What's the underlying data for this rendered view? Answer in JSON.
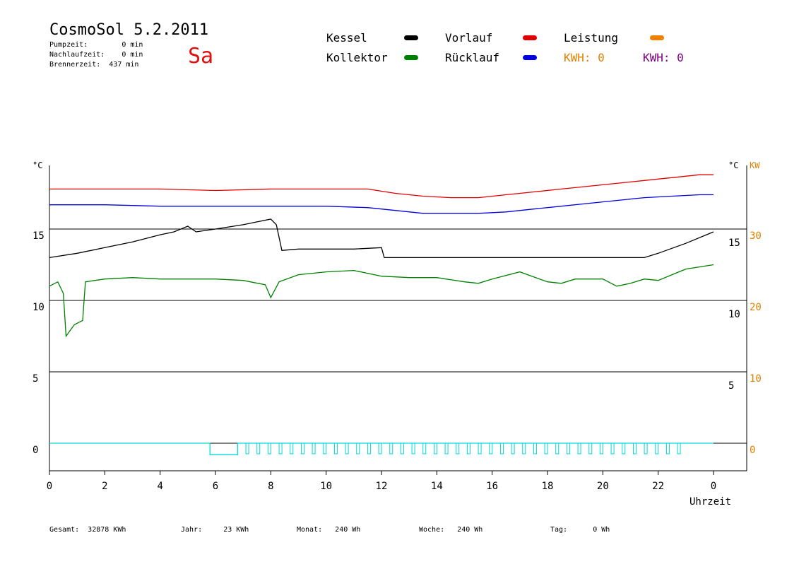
{
  "header": {
    "title": "CosmoSol 5.2.2011",
    "day": "Sa",
    "pumpzeit": "Pumpzeit:        0 min",
    "nachlaufzeit": "Nachlaufzeit:    0 min",
    "brennerzeit": "Brennerzeit:  437 min"
  },
  "legend": {
    "kessel": {
      "label": "Kessel",
      "color": "#000000"
    },
    "kollektor": {
      "label": "Kollektor",
      "color": "#008000"
    },
    "vorlauf": {
      "label": "Vorlauf",
      "color": "#e00000"
    },
    "ruecklauf": {
      "label": "Rücklauf",
      "color": "#0000e0"
    },
    "leistung": {
      "label": "Leistung",
      "color": "#f08000"
    },
    "kwh1": "KWH: 0",
    "kwh2": "KWH: 0",
    "kwh1_color": "#e08000",
    "kwh2_color": "#800080"
  },
  "footer": {
    "gesamt": "Gesamt:  32878 KWh",
    "jahr": "Jahr:     23 KWh",
    "monat": "Monat:   240 Wh",
    "woche": "Woche:   240 Wh",
    "tag": "Tag:      0 Wh"
  },
  "chart_data": {
    "type": "line",
    "xlabel": "Uhrzeit",
    "x_ticks": [
      "0",
      "2",
      "4",
      "6",
      "8",
      "10",
      "12",
      "14",
      "16",
      "18",
      "20",
      "22",
      "0"
    ],
    "x_range": [
      0,
      24
    ],
    "y_left": {
      "unit": "°C",
      "ticks": [
        "15",
        "10",
        "5",
        "0"
      ],
      "range": [
        -2,
        20
      ]
    },
    "y_right_temp": {
      "unit": "°C",
      "ticks": [
        "15",
        "10",
        "5"
      ]
    },
    "y_right_power": {
      "unit": "KW",
      "ticks": [
        "30",
        "20",
        "10",
        "0"
      ],
      "color": "#e08000"
    },
    "grid_values": [
      15,
      10,
      5,
      0
    ],
    "series": [
      {
        "name": "Vorlauf",
        "color": "#e00000",
        "x": [
          0,
          2,
          4,
          6,
          8,
          10,
          11.5,
          12.5,
          13.5,
          14.5,
          15.5,
          16.5,
          17.5,
          18.5,
          19.5,
          20.5,
          21.5,
          22.5,
          23.5,
          24
        ],
        "y": [
          17.8,
          17.8,
          17.8,
          17.7,
          17.8,
          17.8,
          17.8,
          17.5,
          17.3,
          17.2,
          17.2,
          17.4,
          17.6,
          17.8,
          18.0,
          18.2,
          18.4,
          18.6,
          18.8,
          18.8
        ]
      },
      {
        "name": "Rücklauf",
        "color": "#0000e0",
        "x": [
          0,
          2,
          4,
          6,
          8,
          10,
          11.5,
          12.5,
          13.5,
          14.5,
          15.5,
          16.5,
          17.5,
          18.5,
          19.5,
          20.5,
          21.5,
          22.5,
          23.5,
          24
        ],
        "y": [
          16.7,
          16.7,
          16.6,
          16.6,
          16.6,
          16.6,
          16.5,
          16.3,
          16.1,
          16.1,
          16.1,
          16.2,
          16.4,
          16.6,
          16.8,
          17.0,
          17.2,
          17.3,
          17.4,
          17.4
        ]
      },
      {
        "name": "Kessel",
        "color": "#000000",
        "x": [
          0,
          1,
          2,
          3,
          4,
          4.5,
          5,
          5.3,
          6,
          7,
          7.5,
          8,
          8.2,
          8.4,
          9,
          10,
          11,
          12,
          12.1,
          13,
          15,
          17,
          19,
          21,
          21.5,
          22,
          23,
          24
        ],
        "y": [
          13.0,
          13.3,
          13.7,
          14.1,
          14.6,
          14.8,
          15.2,
          14.8,
          15.0,
          15.3,
          15.5,
          15.7,
          15.3,
          13.5,
          13.6,
          13.6,
          13.6,
          13.7,
          13.0,
          13.0,
          13.0,
          13.0,
          13.0,
          13.0,
          13.0,
          13.3,
          14.0,
          14.8
        ]
      },
      {
        "name": "Kollektor",
        "color": "#008000",
        "x": [
          0,
          0.3,
          0.5,
          0.6,
          0.9,
          1.2,
          1.3,
          2,
          3,
          4,
          5,
          6,
          7,
          7.8,
          8,
          8.3,
          9,
          10,
          11,
          12,
          13,
          14,
          15,
          15.5,
          16,
          17,
          18,
          18.5,
          19,
          20,
          20.5,
          21,
          21.5,
          22,
          22.5,
          23,
          24
        ],
        "y": [
          11.0,
          11.3,
          10.5,
          7.5,
          8.3,
          8.6,
          11.3,
          11.5,
          11.6,
          11.5,
          11.5,
          11.5,
          11.4,
          11.1,
          10.2,
          11.3,
          11.8,
          12.0,
          12.1,
          11.7,
          11.6,
          11.6,
          11.3,
          11.2,
          11.5,
          12.0,
          11.3,
          11.2,
          11.5,
          11.5,
          11.0,
          11.2,
          11.5,
          11.4,
          11.8,
          12.2,
          12.5
        ]
      },
      {
        "name": "Leistung",
        "color": "#00d8d8",
        "x": [
          0,
          5.8,
          5.8,
          6.8,
          6.8,
          7.0,
          23.0,
          23.0,
          24
        ],
        "y": [
          0,
          0,
          -0.8,
          -0.8,
          0,
          0,
          0,
          0,
          0
        ]
      }
    ]
  }
}
